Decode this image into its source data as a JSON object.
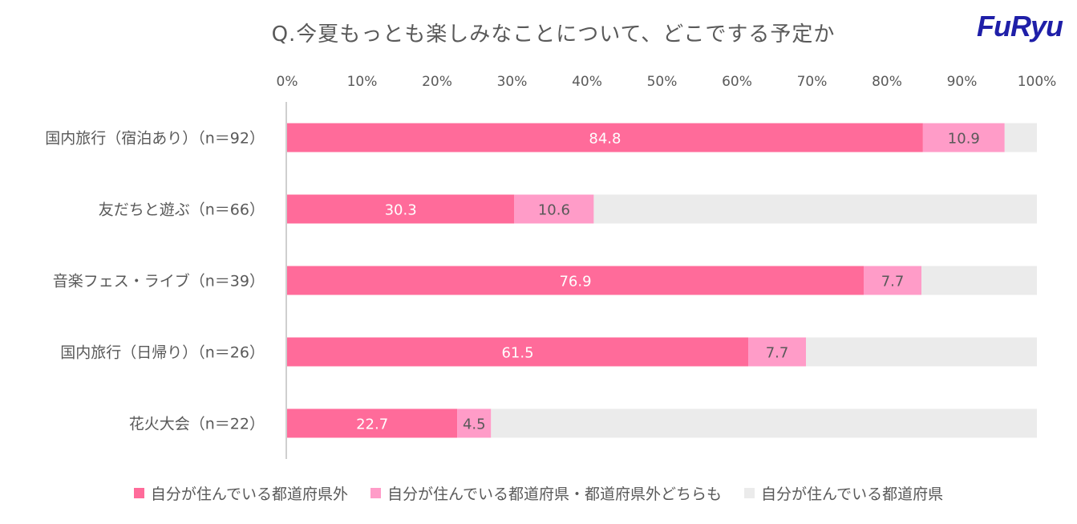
{
  "logo": "FuRyu",
  "colors": {
    "series1": "#ff6b9a",
    "series2": "#ff9cc8",
    "series3": "#ebebeb",
    "text": "#595959",
    "axis": "#bfbfbf"
  },
  "chart_data": {
    "type": "bar",
    "orientation": "horizontal",
    "stacked": true,
    "title": "Q.今夏もっとも楽しみなことについて、どこでする予定か",
    "xlim": [
      0,
      100
    ],
    "xticks": [
      "0%",
      "10%",
      "20%",
      "30%",
      "40%",
      "50%",
      "60%",
      "70%",
      "80%",
      "90%",
      "100%"
    ],
    "categories": [
      "国内旅行（宿泊あり）（n＝92）",
      "友だちと遊ぶ（n＝66）",
      "音楽フェス・ライブ（n＝39）",
      "国内旅行（日帰り）（n＝26）",
      "花火大会（n＝22）"
    ],
    "series": [
      {
        "name": "自分が住んでいる都道府県外",
        "values": [
          84.8,
          30.3,
          76.9,
          61.5,
          22.7
        ],
        "labels": [
          "84.8",
          "30.3",
          "76.9",
          "61.5",
          "22.7"
        ]
      },
      {
        "name": "自分が住んでいる都道府県・都道府県外どちらも",
        "values": [
          10.9,
          10.6,
          7.7,
          7.7,
          4.5
        ],
        "labels": [
          "10.9",
          "10.6",
          "7.7",
          "7.7",
          "4.5"
        ]
      },
      {
        "name": "自分が住んでいる都道府県",
        "values": [
          4.3,
          59.1,
          15.4,
          30.8,
          72.8
        ],
        "labels": [
          "",
          "",
          "",
          "",
          ""
        ]
      }
    ],
    "legend_position": "bottom"
  }
}
